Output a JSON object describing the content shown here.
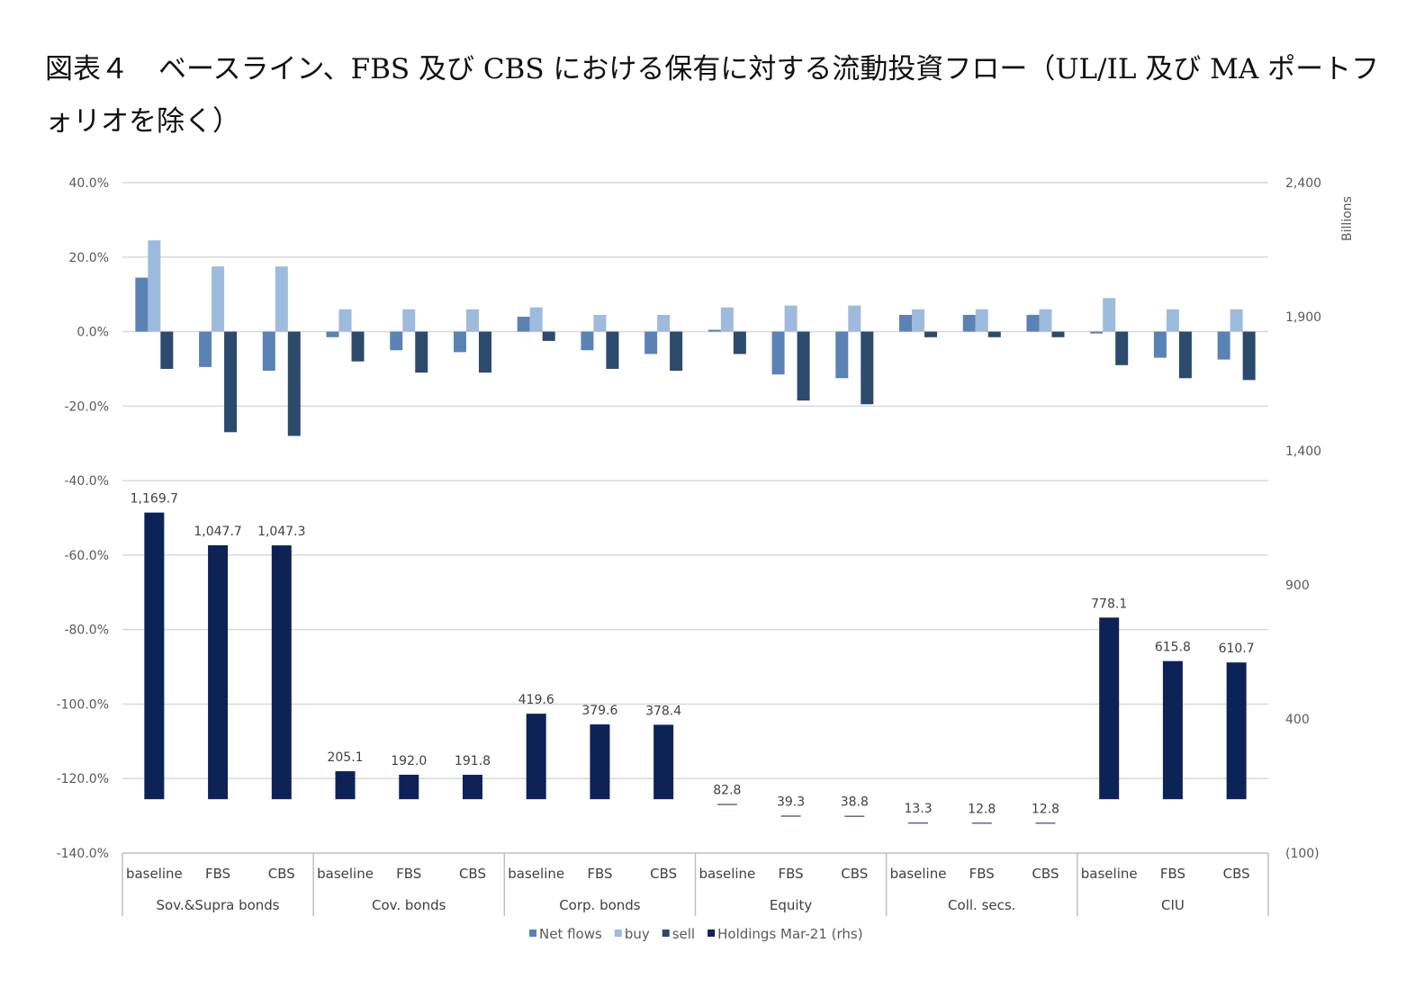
{
  "figure": {
    "number": "図表４",
    "title": "ベースライン、FBS 及び CBS における保有に対する流動投資フロー（UL/IL 及び MA ポートフォリオを除く）"
  },
  "chart_data": {
    "type": "bar",
    "scenarios": [
      "baseline",
      "FBS",
      "CBS"
    ],
    "groups": [
      "Sov.&Supra bonds",
      "Cov. bonds",
      "Corp. bonds",
      "Equity",
      "Coll. secs.",
      "CIU"
    ],
    "left_axis": {
      "ylim": [
        -140,
        40
      ],
      "ticks": [
        "40.0%",
        "20.0%",
        "0.0%",
        "-20.0%",
        "-40.0%",
        "-60.0%",
        "-80.0%",
        "-100.0%",
        "-120.0%",
        "-140.0%"
      ]
    },
    "right_axis": {
      "ylim": [
        -100,
        2400
      ],
      "label": "Billions",
      "ticks": [
        "2,400",
        "1,900",
        "1,400",
        "900",
        "400",
        "(100)"
      ]
    },
    "series": [
      {
        "name": "Net flows",
        "axis": "left",
        "unit": "%",
        "values": [
          14.5,
          -9.5,
          -10.5,
          -1.5,
          -5,
          -5.5,
          4,
          -5,
          -6,
          0.5,
          -11.5,
          -12.5,
          4.5,
          4.5,
          4.5,
          -0.5,
          -7,
          -7.5
        ]
      },
      {
        "name": "buy",
        "axis": "left",
        "unit": "%",
        "values": [
          24.5,
          17.5,
          17.5,
          6,
          6,
          6,
          6.5,
          4.5,
          4.5,
          6.5,
          7,
          7,
          6,
          6,
          6,
          9,
          6,
          6
        ]
      },
      {
        "name": "sell",
        "axis": "left",
        "unit": "%",
        "values": [
          -10,
          -27,
          -28,
          -8,
          -11,
          -11,
          -2.5,
          -10,
          -10.5,
          -6,
          -18.5,
          -19.5,
          -1.5,
          -1.5,
          -1.5,
          -9,
          -12.5,
          -13
        ]
      },
      {
        "name": "Holdings Mar-21 (rhs)",
        "axis": "right",
        "unit": "billions",
        "values": [
          1169.7,
          1047.7,
          1047.3,
          205.1,
          192.0,
          191.8,
          419.6,
          379.6,
          378.4,
          82.8,
          39.3,
          38.8,
          13.3,
          12.8,
          12.8,
          778.1,
          615.8,
          610.7
        ],
        "labels": [
          "1,169.7",
          "1,047.7",
          "1,047.3",
          "205.1",
          "192.0",
          "191.8",
          "419.6",
          "379.6",
          "378.4",
          "82.8",
          "39.3",
          "38.8",
          "13.3",
          "12.8",
          "12.8",
          "778.1",
          "615.8",
          "610.7"
        ]
      }
    ],
    "colors": {
      "Net flows": "#5b82b4",
      "buy": "#9dbbdc",
      "sell": "#2c4a6b",
      "Holdings Mar-21 (rhs)": "#0d2257",
      "grid": "#d9d9d9",
      "axis": "#bfbfbf"
    },
    "grid": true,
    "legend_position": "bottom"
  }
}
